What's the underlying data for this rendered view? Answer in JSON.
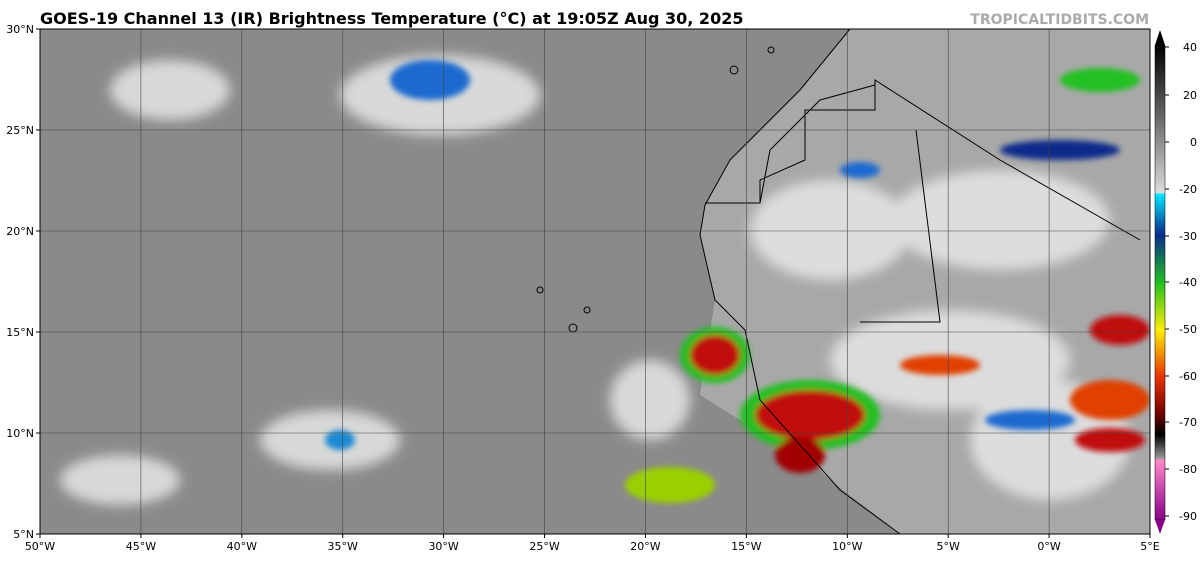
{
  "header": {
    "title": "GOES-19 Channel 13 (IR) Brightness Temperature (°C) at 19:05Z Aug 30, 2025",
    "source": "TROPICALTIDBITS.COM"
  },
  "map": {
    "lat_labels": [
      "30°N",
      "25°N",
      "20°N",
      "15°N",
      "10°N",
      "5°N"
    ],
    "lon_labels": [
      "50°W",
      "45°W",
      "40°W",
      "35°W",
      "30°W",
      "25°W",
      "20°W",
      "15°W",
      "10°W",
      "5°W",
      "0°W",
      "5°E"
    ],
    "colorbar_labels": [
      "40",
      "20",
      "0",
      "-20",
      "-30",
      "-40",
      "-50",
      "-60",
      "-70",
      "-80",
      "-90"
    ]
  }
}
